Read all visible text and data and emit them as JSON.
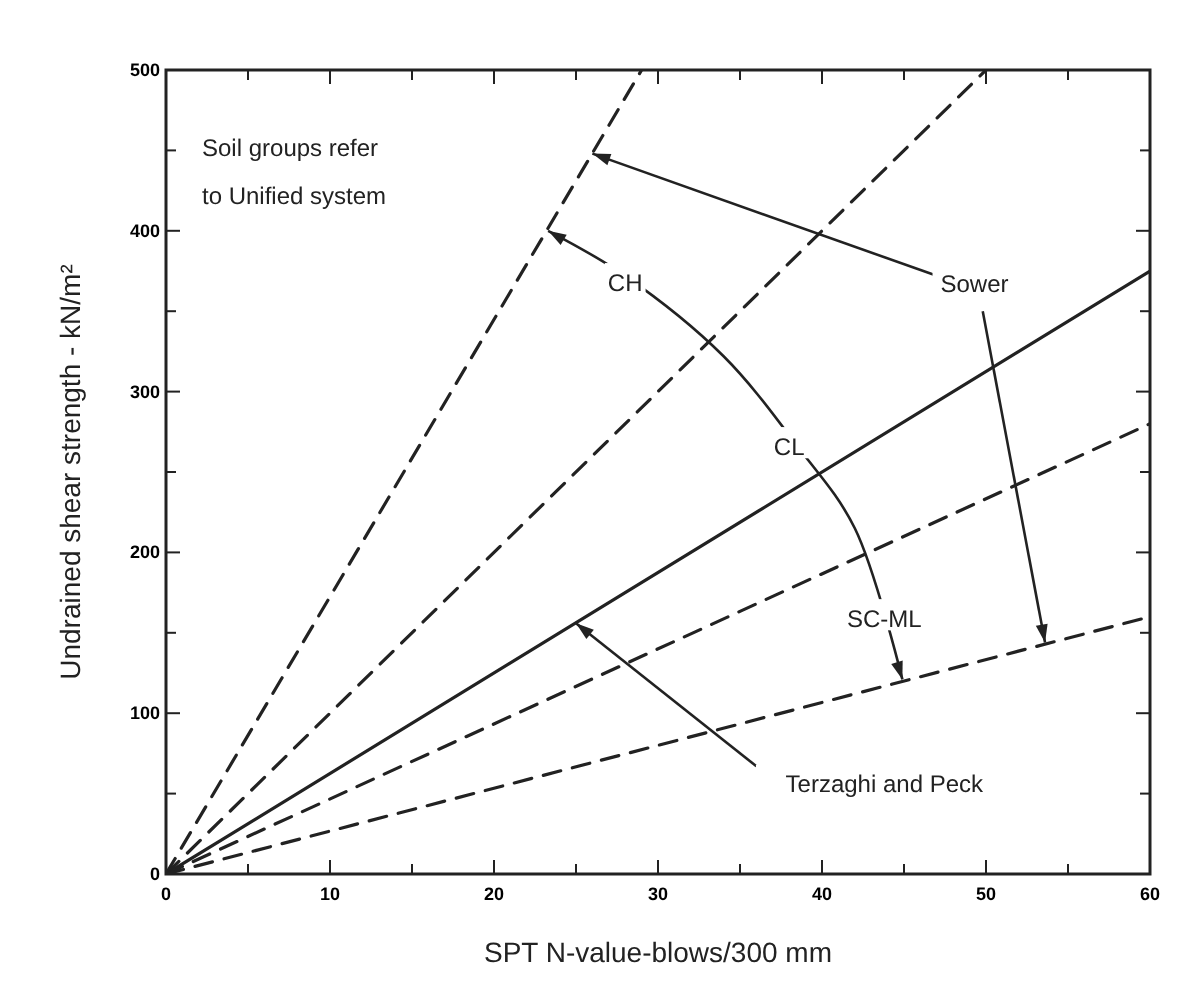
{
  "chart_data": {
    "type": "line",
    "xlabel": "SPT N-value-blows/300 mm",
    "ylabel": "Undrained shear strength - kN/m²",
    "xlim": [
      0,
      60
    ],
    "ylim": [
      0,
      500
    ],
    "xticks": [
      0,
      {
        "value": 5,
        "label": null
      },
      10,
      {
        "value": 15,
        "label": null
      },
      20,
      {
        "value": 25,
        "label": null
      },
      30,
      {
        "value": 35,
        "label": null
      },
      40,
      {
        "value": 45,
        "label": null
      },
      50,
      {
        "value": 55,
        "label": null
      },
      60
    ],
    "yticks": [
      0,
      {
        "value": 50,
        "label": null
      },
      100,
      {
        "value": 150,
        "label": null
      },
      200,
      {
        "value": 250,
        "label": null
      },
      300,
      {
        "value": 350,
        "label": null
      },
      400,
      {
        "value": 450,
        "label": null
      },
      500
    ],
    "series": [
      {
        "color": "#222222",
        "line_style": "dashed",
        "x": [
          0,
          29
        ],
        "values": [
          0,
          500
        ]
      },
      {
        "color": "#222222",
        "line_style": "dashed",
        "x": [
          0,
          50
        ],
        "values": [
          0,
          500
        ]
      },
      {
        "color": "#222222",
        "line_style": "solid",
        "x": [
          0,
          60
        ],
        "values": [
          0,
          375
        ]
      },
      {
        "color": "#222222",
        "line_style": "dashed",
        "x": [
          0,
          60
        ],
        "values": [
          0,
          280
        ]
      },
      {
        "color": "#222222",
        "line_style": "dashed",
        "x": [
          0,
          60
        ],
        "values": [
          0,
          160
        ]
      }
    ],
    "annotations": [
      "Soil groups refer to Unified system",
      "CH",
      "CL",
      "SC-ML",
      {
        "text": "Sower",
        "x": 26,
        "y": 448
      },
      {
        "text": "Terzaghi and Peck",
        "x": 25,
        "y": 156
      }
    ],
    "grid": false,
    "marker": "none"
  }
}
